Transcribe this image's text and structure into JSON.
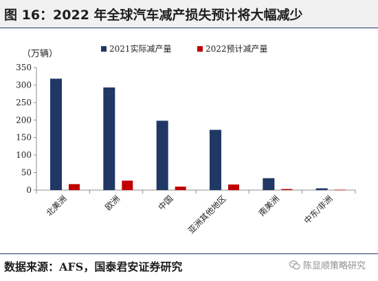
{
  "title": "图 16：2022 年全球汽车减产损失预计将大幅减少",
  "source": "数据来源：AFS，国泰君安证券研究",
  "watermark": {
    "icon": "wechat-icon",
    "text": "陈显顺策略研究"
  },
  "chart_data": {
    "type": "bar",
    "unit_label": "（万辆）",
    "categories": [
      "北美洲",
      "欧洲",
      "中国",
      "亚洲其他地区",
      "南美洲",
      "中东/非洲"
    ],
    "series": [
      {
        "name": "2021实际减产量",
        "color": "#203864",
        "values": [
          318,
          293,
          198,
          172,
          34,
          5
        ]
      },
      {
        "name": "2022预计减产量",
        "color": "#c00000",
        "values": [
          17,
          27,
          10,
          16,
          3,
          1
        ]
      }
    ],
    "ylim": [
      0,
      350
    ],
    "yticks": [
      0,
      50,
      100,
      150,
      200,
      250,
      300,
      350
    ],
    "grid": false,
    "legend_position": "top"
  }
}
